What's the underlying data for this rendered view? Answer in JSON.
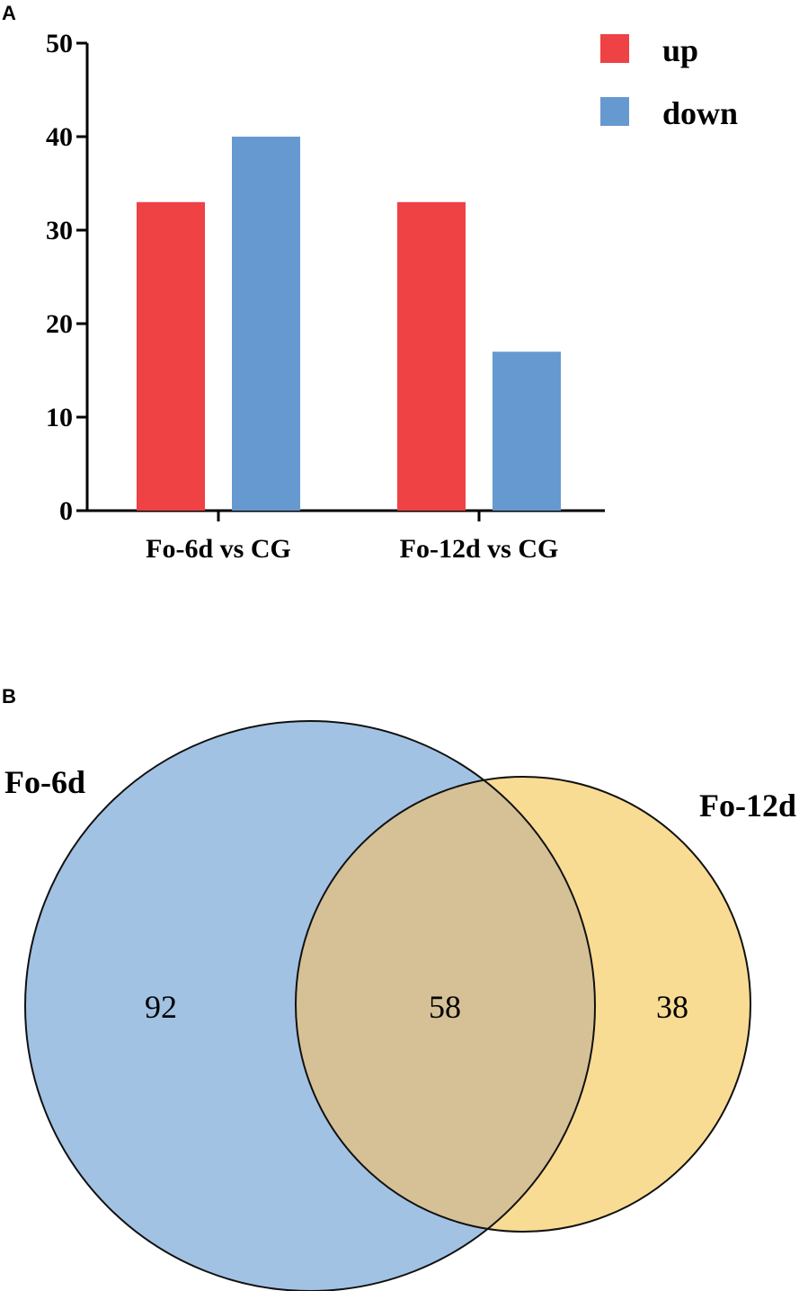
{
  "chart_data": [
    {
      "panel": "A",
      "type": "bar",
      "categories": [
        "Fo-6d vs CG",
        "Fo-12d vs CG"
      ],
      "series": [
        {
          "name": "up",
          "values": [
            33,
            33
          ],
          "color": "#ee4245"
        },
        {
          "name": "down",
          "values": [
            40,
            17
          ],
          "color": "#6699d0"
        }
      ],
      "ylim": [
        0,
        50
      ],
      "yticks": [
        "0",
        "10",
        "20",
        "30",
        "40",
        "50"
      ],
      "xlabel": "",
      "ylabel": "",
      "grid": false,
      "legend": "top-right"
    },
    {
      "panel": "B",
      "type": "venn",
      "sets": [
        {
          "name": "Fo-6d",
          "color": "#a2c2e3"
        },
        {
          "name": "Fo-12d",
          "color": "#f9dc94"
        }
      ],
      "overlap_color": "#d6c196",
      "regions": [
        {
          "sets": [
            "Fo-6d"
          ],
          "value": "92"
        },
        {
          "sets": [
            "Fo-6d",
            "Fo-12d"
          ],
          "value": "58"
        },
        {
          "sets": [
            "Fo-12d"
          ],
          "value": "38"
        }
      ]
    }
  ]
}
